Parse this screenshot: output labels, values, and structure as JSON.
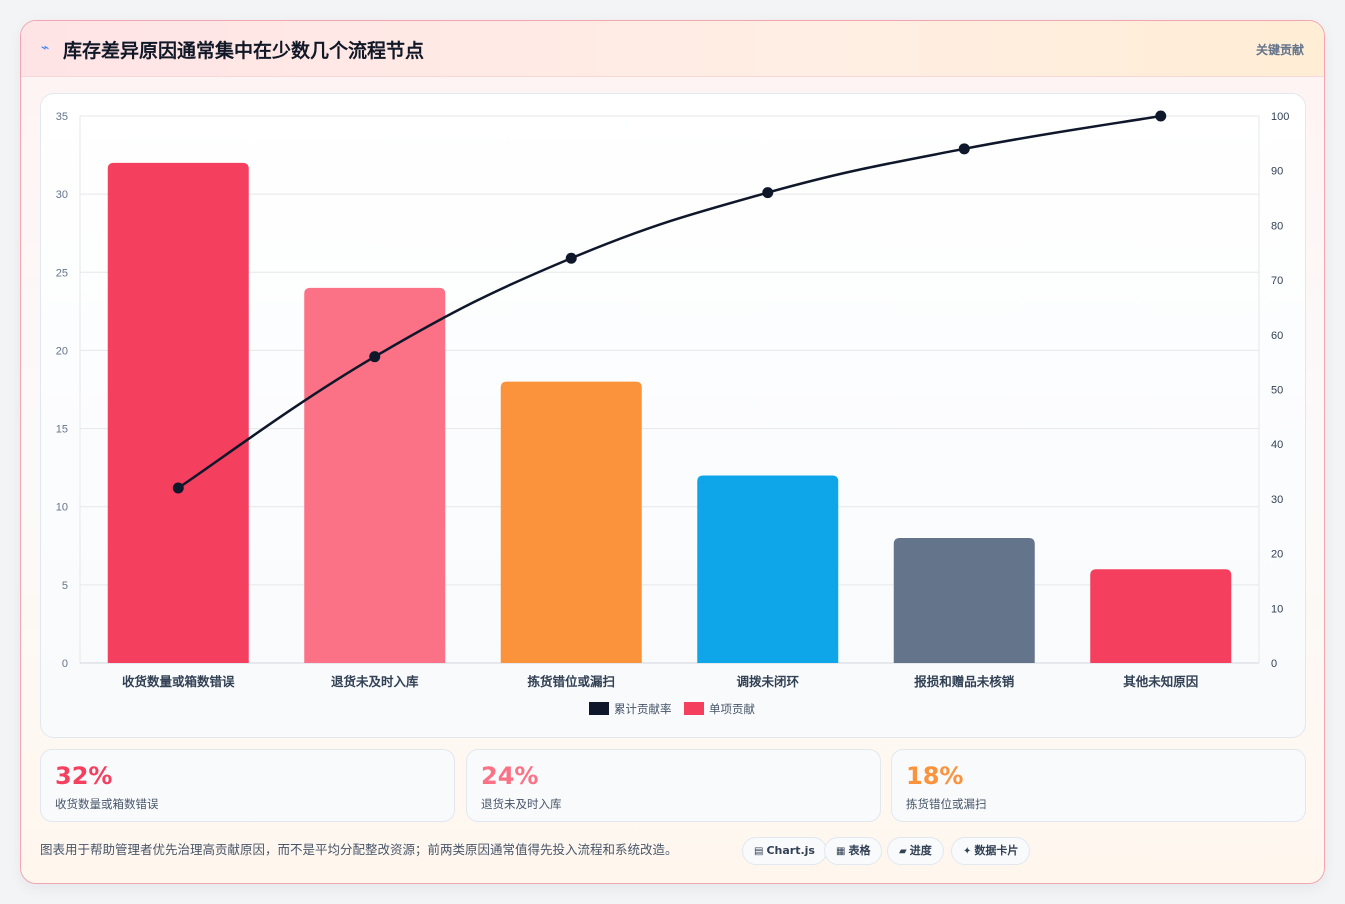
{
  "header": {
    "icon": "lightning-icon",
    "title": "库存差异原因通常集中在少数几个流程节点",
    "badge": "关键贡献"
  },
  "chart_data": {
    "type": "bar",
    "categories": [
      "收货数量或箱数错误",
      "退货未及时入库",
      "拣货错位或漏扫",
      "调拨未闭环",
      "报损和赠品未核销",
      "其他未知原因"
    ],
    "series": [
      {
        "name": "单项贡献",
        "type": "bar",
        "values": [
          32,
          24,
          18,
          12,
          8,
          6
        ],
        "colors": [
          "#f43f5e",
          "#fb7185",
          "#fb923c",
          "#0ea5e9",
          "#64748b",
          "#f43f5e"
        ],
        "axis": "left"
      },
      {
        "name": "累计贡献率",
        "type": "line",
        "values": [
          32,
          56,
          74,
          86,
          94,
          100
        ],
        "color": "#0f172a",
        "axis": "right"
      }
    ],
    "ylim": [
      0,
      35
    ],
    "yticks": [
      0,
      5,
      10,
      15,
      20,
      25,
      30,
      35
    ],
    "y2lim": [
      0,
      100
    ],
    "y2ticks": [
      0,
      10,
      20,
      30,
      40,
      50,
      60,
      70,
      80,
      90,
      100
    ],
    "legend": [
      {
        "label": "累计贡献率",
        "color": "#0f172a"
      },
      {
        "label": "单项贡献",
        "color": "#f43f5e"
      }
    ],
    "legend_position": "bottom",
    "grid": true
  },
  "stats": [
    {
      "value": "32%",
      "label": "收货数量或箱数错误",
      "color": "#f43f5e"
    },
    {
      "value": "24%",
      "label": "退货未及时入库",
      "color": "#fb7185"
    },
    {
      "value": "18%",
      "label": "拣货错位或漏扫",
      "color": "#fb923c"
    }
  ],
  "footnote": "图表用于帮助管理者优先治理高贡献原因，而不是平均分配整改资源；前两类原因通常值得先投入流程和系统改造。",
  "chips": [
    {
      "icon": "chart-icon",
      "glyph": "▤",
      "label": "Chart.js"
    },
    {
      "icon": "table-icon",
      "glyph": "▦",
      "label": "表格"
    },
    {
      "icon": "progress-icon",
      "glyph": "▰",
      "label": "进度"
    },
    {
      "icon": "sparkle-icon",
      "glyph": "✦",
      "label": "数据卡片"
    }
  ]
}
